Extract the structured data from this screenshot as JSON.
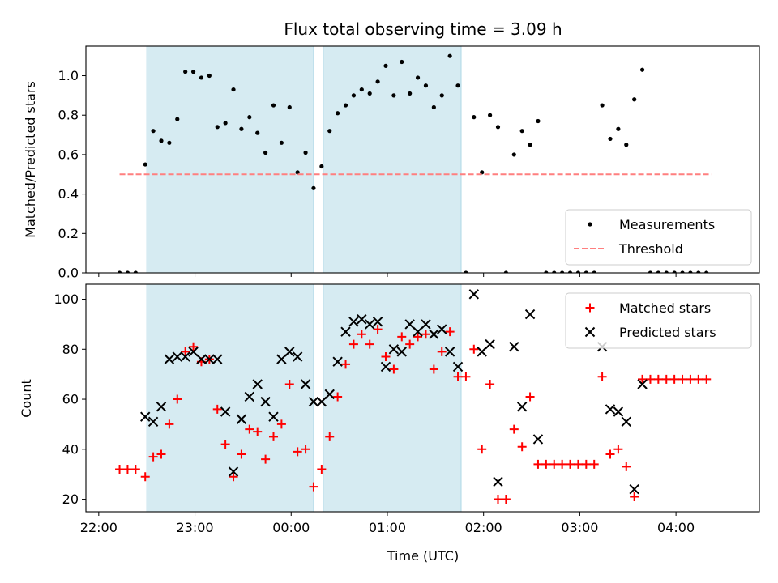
{
  "chart_data": [
    {
      "type": "scatter",
      "title": "Flux total observing time = 3.09 h",
      "ylabel": "Matched/Predicted stars",
      "xlabel": "",
      "ylim": [
        0,
        1.15
      ],
      "xlim": [
        "21:52",
        "04:52"
      ],
      "grid": false,
      "legend_position": "lower-right",
      "shaded_intervals": [
        [
          "22:30",
          "00:14"
        ],
        [
          "00:20",
          "01:46"
        ]
      ],
      "shade_color": "#add8e6",
      "yticks": [
        "0.0",
        "0.2",
        "0.4",
        "0.6",
        "0.8",
        "1.0"
      ],
      "series": [
        {
          "name": "Measurements",
          "kind": "dots",
          "color": "#000000",
          "points": [
            [
              "22:13",
              0.0
            ],
            [
              "22:18",
              0.0
            ],
            [
              "22:23",
              0.0
            ],
            [
              "22:29",
              0.55
            ],
            [
              "22:34",
              0.72
            ],
            [
              "22:39",
              0.67
            ],
            [
              "22:44",
              0.66
            ],
            [
              "22:49",
              0.78
            ],
            [
              "22:54",
              1.02
            ],
            [
              "22:59",
              1.02
            ],
            [
              "23:04",
              0.99
            ],
            [
              "23:09",
              1.0
            ],
            [
              "23:14",
              0.74
            ],
            [
              "23:19",
              0.76
            ],
            [
              "23:24",
              0.93
            ],
            [
              "23:29",
              0.73
            ],
            [
              "23:34",
              0.79
            ],
            [
              "23:39",
              0.71
            ],
            [
              "23:44",
              0.61
            ],
            [
              "23:49",
              0.85
            ],
            [
              "23:54",
              0.66
            ],
            [
              "23:59",
              0.84
            ],
            [
              "00:04",
              0.51
            ],
            [
              "00:09",
              0.61
            ],
            [
              "00:14",
              0.43
            ],
            [
              "00:19",
              0.54
            ],
            [
              "00:24",
              0.72
            ],
            [
              "00:29",
              0.81
            ],
            [
              "00:34",
              0.85
            ],
            [
              "00:39",
              0.9
            ],
            [
              "00:44",
              0.93
            ],
            [
              "00:49",
              0.91
            ],
            [
              "00:54",
              0.97
            ],
            [
              "00:59",
              1.05
            ],
            [
              "01:04",
              0.9
            ],
            [
              "01:09",
              1.07
            ],
            [
              "01:14",
              0.91
            ],
            [
              "01:19",
              0.99
            ],
            [
              "01:24",
              0.95
            ],
            [
              "01:29",
              0.84
            ],
            [
              "01:34",
              0.9
            ],
            [
              "01:39",
              1.1
            ],
            [
              "01:44",
              0.95
            ],
            [
              "01:49",
              0.0
            ],
            [
              "01:54",
              0.79
            ],
            [
              "01:59",
              0.51
            ],
            [
              "02:04",
              0.8
            ],
            [
              "02:09",
              0.74
            ],
            [
              "02:14",
              0.0
            ],
            [
              "02:19",
              0.6
            ],
            [
              "02:24",
              0.72
            ],
            [
              "02:29",
              0.65
            ],
            [
              "02:34",
              0.77
            ],
            [
              "02:39",
              0.0
            ],
            [
              "02:44",
              0.0
            ],
            [
              "02:49",
              0.0
            ],
            [
              "02:54",
              0.0
            ],
            [
              "02:59",
              0.0
            ],
            [
              "03:04",
              0.0
            ],
            [
              "03:09",
              0.0
            ],
            [
              "03:14",
              0.85
            ],
            [
              "03:19",
              0.68
            ],
            [
              "03:24",
              0.73
            ],
            [
              "03:29",
              0.65
            ],
            [
              "03:34",
              0.88
            ],
            [
              "03:39",
              1.03
            ],
            [
              "03:44",
              0.0
            ],
            [
              "03:49",
              0.0
            ],
            [
              "03:54",
              0.0
            ],
            [
              "03:59",
              0.0
            ],
            [
              "04:04",
              0.0
            ],
            [
              "04:09",
              0.0
            ],
            [
              "04:14",
              0.0
            ],
            [
              "04:19",
              0.0
            ]
          ]
        },
        {
          "name": "Threshold",
          "kind": "dashed-line",
          "color": "#ff7f7f",
          "points": [
            [
              "22:13",
              0.5
            ],
            [
              "04:22",
              0.5
            ]
          ]
        }
      ]
    },
    {
      "type": "scatter",
      "title": "",
      "ylabel": "Count",
      "xlabel": "Time (UTC)",
      "ylim": [
        15,
        106
      ],
      "xlim": [
        "21:52",
        "04:52"
      ],
      "grid": false,
      "legend_position": "top-right",
      "shaded_intervals": [
        [
          "22:30",
          "00:14"
        ],
        [
          "00:20",
          "01:46"
        ]
      ],
      "shade_color": "#add8e6",
      "yticks": [
        "20",
        "40",
        "60",
        "80",
        "100"
      ],
      "xticks": [
        "22:00",
        "23:00",
        "00:00",
        "01:00",
        "02:00",
        "03:00",
        "04:00"
      ],
      "series": [
        {
          "name": "Matched stars",
          "kind": "plus",
          "color": "#ff0000",
          "points": [
            [
              "22:13",
              32
            ],
            [
              "22:18",
              32
            ],
            [
              "22:23",
              32
            ],
            [
              "22:29",
              29
            ],
            [
              "22:34",
              37
            ],
            [
              "22:39",
              38
            ],
            [
              "22:44",
              50
            ],
            [
              "22:49",
              60
            ],
            [
              "22:54",
              79
            ],
            [
              "22:59",
              81
            ],
            [
              "23:04",
              75
            ],
            [
              "23:09",
              76
            ],
            [
              "23:14",
              56
            ],
            [
              "23:19",
              42
            ],
            [
              "23:24",
              29
            ],
            [
              "23:29",
              38
            ],
            [
              "23:34",
              48
            ],
            [
              "23:39",
              47
            ],
            [
              "23:44",
              36
            ],
            [
              "23:49",
              45
            ],
            [
              "23:54",
              50
            ],
            [
              "23:59",
              66
            ],
            [
              "00:04",
              39
            ],
            [
              "00:09",
              40
            ],
            [
              "00:14",
              25
            ],
            [
              "00:19",
              32
            ],
            [
              "00:24",
              45
            ],
            [
              "00:29",
              61
            ],
            [
              "00:34",
              74
            ],
            [
              "00:39",
              82
            ],
            [
              "00:44",
              86
            ],
            [
              "00:49",
              82
            ],
            [
              "00:54",
              88
            ],
            [
              "00:59",
              77
            ],
            [
              "01:04",
              72
            ],
            [
              "01:09",
              85
            ],
            [
              "01:14",
              82
            ],
            [
              "01:19",
              85
            ],
            [
              "01:24",
              86
            ],
            [
              "01:29",
              72
            ],
            [
              "01:34",
              79
            ],
            [
              "01:39",
              87
            ],
            [
              "01:44",
              69
            ],
            [
              "01:49",
              69
            ],
            [
              "01:54",
              80
            ],
            [
              "01:59",
              40
            ],
            [
              "02:04",
              66
            ],
            [
              "02:09",
              20
            ],
            [
              "02:14",
              20
            ],
            [
              "02:19",
              48
            ],
            [
              "02:24",
              41
            ],
            [
              "02:29",
              61
            ],
            [
              "02:34",
              34
            ],
            [
              "02:39",
              34
            ],
            [
              "02:44",
              34
            ],
            [
              "02:49",
              34
            ],
            [
              "02:54",
              34
            ],
            [
              "02:59",
              34
            ],
            [
              "03:04",
              34
            ],
            [
              "03:09",
              34
            ],
            [
              "03:14",
              69
            ],
            [
              "03:19",
              38
            ],
            [
              "03:24",
              40
            ],
            [
              "03:29",
              33
            ],
            [
              "03:34",
              21
            ],
            [
              "03:39",
              68
            ],
            [
              "03:44",
              68
            ],
            [
              "03:49",
              68
            ],
            [
              "03:54",
              68
            ],
            [
              "03:59",
              68
            ],
            [
              "04:04",
              68
            ],
            [
              "04:09",
              68
            ],
            [
              "04:14",
              68
            ],
            [
              "04:19",
              68
            ]
          ]
        },
        {
          "name": "Predicted stars",
          "kind": "x",
          "color": "#000000",
          "points": [
            [
              "22:29",
              53
            ],
            [
              "22:34",
              51
            ],
            [
              "22:39",
              57
            ],
            [
              "22:44",
              76
            ],
            [
              "22:49",
              77
            ],
            [
              "22:54",
              77
            ],
            [
              "22:59",
              79
            ],
            [
              "23:04",
              76
            ],
            [
              "23:09",
              76
            ],
            [
              "23:14",
              76
            ],
            [
              "23:19",
              55
            ],
            [
              "23:24",
              31
            ],
            [
              "23:29",
              52
            ],
            [
              "23:34",
              61
            ],
            [
              "23:39",
              66
            ],
            [
              "23:44",
              59
            ],
            [
              "23:49",
              53
            ],
            [
              "23:54",
              76
            ],
            [
              "23:59",
              79
            ],
            [
              "00:04",
              77
            ],
            [
              "00:09",
              66
            ],
            [
              "00:14",
              59
            ],
            [
              "00:19",
              59
            ],
            [
              "00:24",
              62
            ],
            [
              "00:29",
              75
            ],
            [
              "00:34",
              87
            ],
            [
              "00:39",
              91
            ],
            [
              "00:44",
              92
            ],
            [
              "00:49",
              90
            ],
            [
              "00:54",
              91
            ],
            [
              "00:59",
              73
            ],
            [
              "01:04",
              80
            ],
            [
              "01:09",
              79
            ],
            [
              "01:14",
              90
            ],
            [
              "01:19",
              87
            ],
            [
              "01:24",
              90
            ],
            [
              "01:29",
              86
            ],
            [
              "01:34",
              88
            ],
            [
              "01:39",
              79
            ],
            [
              "01:44",
              73
            ],
            [
              "01:54",
              102
            ],
            [
              "01:59",
              79
            ],
            [
              "02:04",
              82
            ],
            [
              "02:09",
              27
            ],
            [
              "02:19",
              81
            ],
            [
              "02:24",
              57
            ],
            [
              "02:29",
              94
            ],
            [
              "02:34",
              44
            ],
            [
              "03:14",
              81
            ],
            [
              "03:19",
              56
            ],
            [
              "03:24",
              55
            ],
            [
              "03:29",
              51
            ],
            [
              "03:34",
              24
            ],
            [
              "03:39",
              66
            ]
          ]
        }
      ]
    }
  ]
}
